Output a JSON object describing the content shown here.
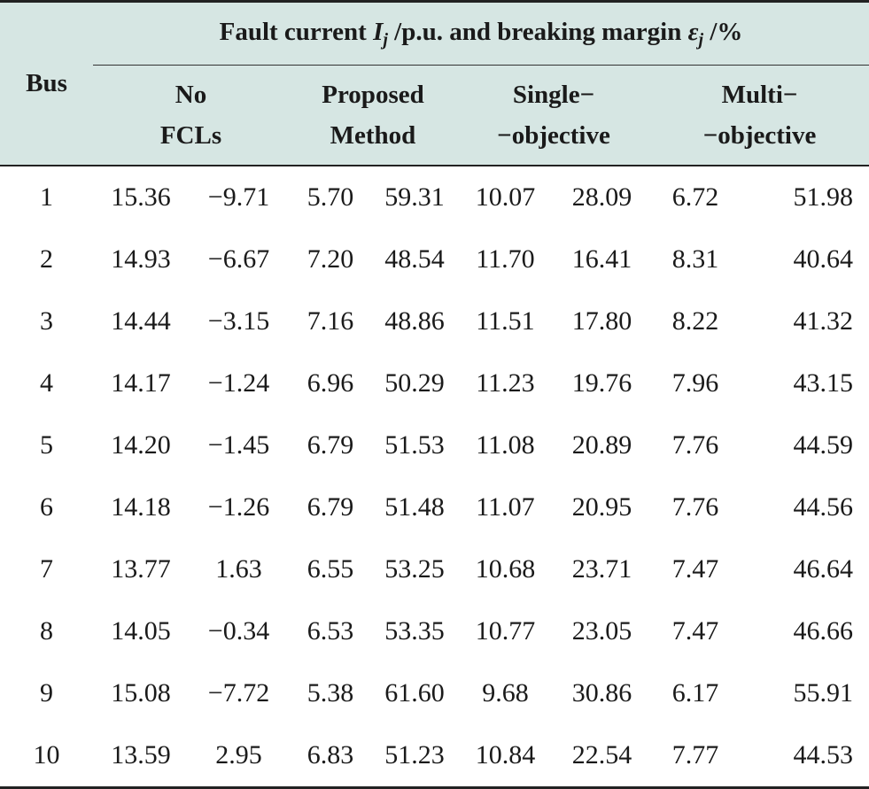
{
  "table": {
    "bus_header": "Bus",
    "group_header": {
      "prefix": "Fault current ",
      "I_symbol": "I",
      "I_sub": "j",
      "middle": " /p.u. and breaking margin ",
      "eps_symbol": "ε",
      "eps_sub": "j",
      "suffix": " /%"
    },
    "methods": [
      {
        "line1": "No",
        "line2": "FCLs"
      },
      {
        "line1": "Proposed",
        "line2": "Method"
      },
      {
        "line1": "Single−",
        "line2": "−objective"
      },
      {
        "line1": "Multi−",
        "line2": "−objective"
      }
    ],
    "rows": [
      {
        "bus": "1",
        "v": [
          "15.36",
          "−9.71",
          "5.70",
          "59.31",
          "10.07",
          "28.09",
          "6.72",
          "51.98"
        ]
      },
      {
        "bus": "2",
        "v": [
          "14.93",
          "−6.67",
          "7.20",
          "48.54",
          "11.70",
          "16.41",
          "8.31",
          "40.64"
        ]
      },
      {
        "bus": "3",
        "v": [
          "14.44",
          "−3.15",
          "7.16",
          "48.86",
          "11.51",
          "17.80",
          "8.22",
          "41.32"
        ]
      },
      {
        "bus": "4",
        "v": [
          "14.17",
          "−1.24",
          "6.96",
          "50.29",
          "11.23",
          "19.76",
          "7.96",
          "43.15"
        ]
      },
      {
        "bus": "5",
        "v": [
          "14.20",
          "−1.45",
          "6.79",
          "51.53",
          "11.08",
          "20.89",
          "7.76",
          "44.59"
        ]
      },
      {
        "bus": "6",
        "v": [
          "14.18",
          "−1.26",
          "6.79",
          "51.48",
          "11.07",
          "20.95",
          "7.76",
          "44.56"
        ]
      },
      {
        "bus": "7",
        "v": [
          "13.77",
          "1.63",
          "6.55",
          "53.25",
          "10.68",
          "23.71",
          "7.47",
          "46.64"
        ]
      },
      {
        "bus": "8",
        "v": [
          "14.05",
          "−0.34",
          "6.53",
          "53.35",
          "10.77",
          "23.05",
          "7.47",
          "46.66"
        ]
      },
      {
        "bus": "9",
        "v": [
          "15.08",
          "−7.72",
          "5.38",
          "61.60",
          "9.68",
          "30.86",
          "6.17",
          "55.91"
        ]
      },
      {
        "bus": "10",
        "v": [
          "13.59",
          "2.95",
          "6.83",
          "51.23",
          "10.84",
          "22.54",
          "7.77",
          "44.53"
        ]
      }
    ]
  }
}
